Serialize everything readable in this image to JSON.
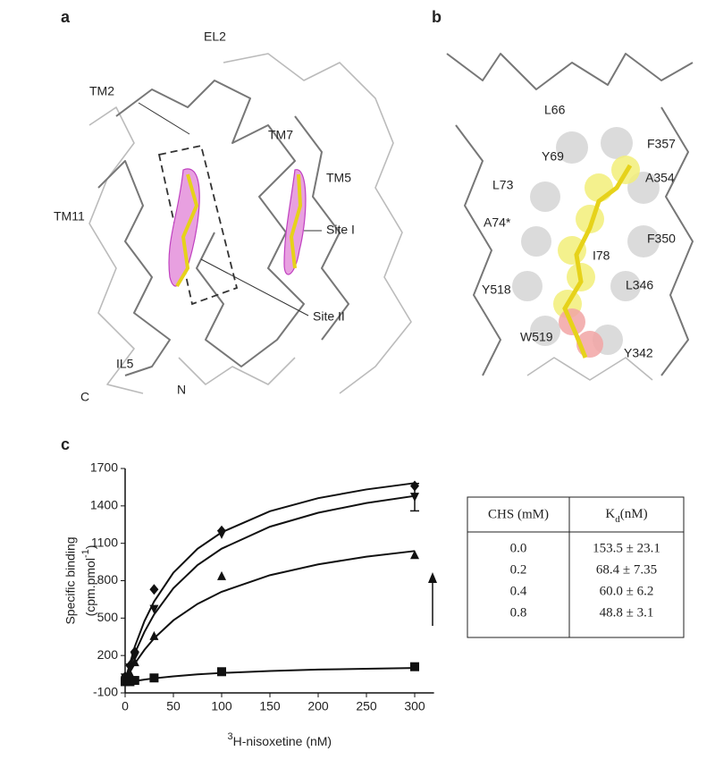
{
  "panels": {
    "a": {
      "label": "a",
      "texts": [
        "EL2",
        "TM2",
        "TM7",
        "TM5",
        "TM11",
        "Site I",
        "Site II",
        "IL5",
        "C",
        "N"
      ]
    },
    "b": {
      "label": "b",
      "texts": [
        "L66",
        "F357",
        "A354",
        "Y69",
        "L73",
        "A74*",
        "F350",
        "I78",
        "Y518",
        "L346",
        "W519",
        "Y342"
      ]
    },
    "c": {
      "label": "c"
    }
  },
  "chart_data": {
    "type": "scatter",
    "x_label": {
      "sup": "3",
      "text": "H-nisoxetine (nM)"
    },
    "y_label": {
      "line1": "Specific binding",
      "line2": "(cpm.pmol",
      "sup": "-1",
      "close": ")"
    },
    "x": [
      0,
      5,
      10,
      30,
      100,
      300
    ],
    "curve_x": [
      0,
      10,
      20,
      30,
      50,
      75,
      100,
      150,
      200,
      250,
      300
    ],
    "series": [
      {
        "marker": "diamond",
        "color": "#111",
        "values": [
          30,
          120,
          230,
          730,
          1200,
          1560
        ],
        "curve": [
          0,
          271,
          475,
          633,
          864,
          1056,
          1188,
          1357,
          1462,
          1532,
          1583
        ]
      },
      {
        "marker": "triangle-down",
        "color": "#111",
        "values": [
          20,
          100,
          190,
          570,
          1170,
          1470
        ],
        "errors": [
          null,
          null,
          null,
          null,
          null,
          110
        ],
        "curve": [
          0,
          218,
          389,
          529,
          740,
          925,
          1057,
          1233,
          1345,
          1423,
          1480
        ]
      },
      {
        "marker": "triangle",
        "color": "#111",
        "values": [
          10,
          60,
          150,
          360,
          840,
          1010
        ],
        "curve": [
          0,
          135,
          245,
          338,
          482,
          614,
          711,
          844,
          931,
          993,
          1038
        ]
      },
      {
        "marker": "square",
        "color": "#111",
        "values": [
          -10,
          -10,
          0,
          20,
          70,
          110
        ],
        "curve": [
          -20,
          -5,
          7,
          17,
          33,
          49,
          60,
          76,
          87,
          94,
          100
        ]
      }
    ],
    "xlim": [
      0,
      320
    ],
    "xticks": [
      0,
      50,
      100,
      150,
      200,
      250,
      300
    ],
    "ylim": [
      -100,
      1700
    ],
    "yticks": [
      -100,
      200,
      500,
      800,
      1100,
      1400,
      1700
    ]
  },
  "table": {
    "header": {
      "col1": "CHS (mM)",
      "col2": {
        "main": "K",
        "sub": "d",
        "unit": "(nM)"
      }
    },
    "rows": [
      [
        "0.0",
        "153.5 ± 23.1"
      ],
      [
        "0.2",
        "68.4 ± 7.35"
      ],
      [
        "0.4",
        "60.0 ± 6.2"
      ],
      [
        "0.8",
        "48.8 ± 3.1"
      ]
    ]
  }
}
